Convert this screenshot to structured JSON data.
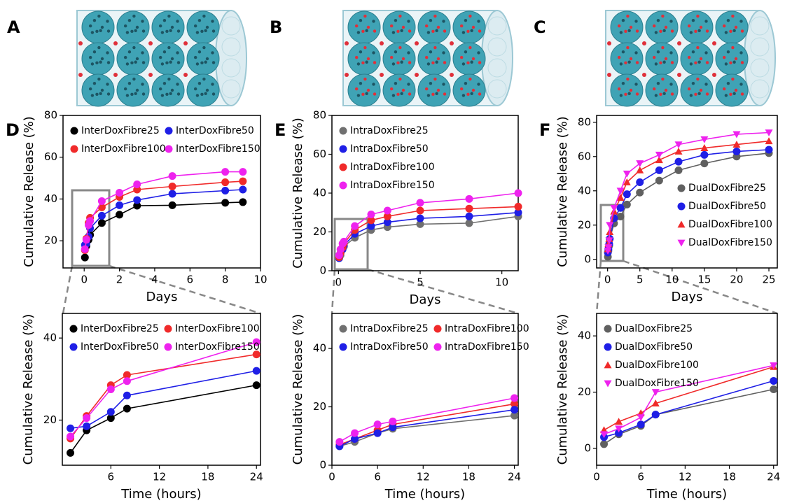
{
  "panel_labels": [
    "A",
    "B",
    "C"
  ],
  "chart_data": [
    {
      "type": "line",
      "panel": "D",
      "xlabel": "Days",
      "ylabel": "Cumulative Release (%)",
      "xlim": [
        -1.2,
        10
      ],
      "xticks": [
        0,
        2,
        4,
        6,
        8,
        10
      ],
      "ylim": [
        7,
        80
      ],
      "yticks": [
        20,
        40,
        60,
        80
      ],
      "legend": "upper left",
      "legend_columns": 2,
      "x": [
        0.042,
        0.125,
        0.25,
        0.333,
        1,
        2,
        3,
        5,
        8,
        9
      ],
      "series": [
        {
          "name": "InterDoxFibre25",
          "color": "#000000",
          "marker": "circle",
          "values": [
            12,
            17.5,
            20.5,
            22.8,
            28.5,
            32.5,
            36.8,
            37,
            38.2,
            38.5
          ]
        },
        {
          "name": "InterDoxFibre50",
          "color": "#1f1fe6",
          "marker": "circle",
          "values": [
            18,
            18.5,
            22,
            26,
            32,
            37,
            39.5,
            42.5,
            44,
            44.5
          ]
        },
        {
          "name": "InterDoxFibre100",
          "color": "#f02a2a",
          "marker": "circle",
          "values": [
            15.5,
            21,
            28.5,
            31,
            36,
            41,
            44.5,
            46,
            48,
            48.5
          ]
        },
        {
          "name": "InterDoxFibre150",
          "color": "#ee22ee",
          "marker": "circle",
          "values": [
            16,
            20.5,
            27.5,
            29.5,
            39,
            43,
            47,
            51,
            53,
            53
          ]
        }
      ]
    },
    {
      "type": "line",
      "xlabel": "Time (hours)",
      "ylabel": "Cumulative Release (%)",
      "xlim": [
        0,
        24.5
      ],
      "xticks": [
        6,
        12,
        18,
        24
      ],
      "ylim": [
        9,
        46
      ],
      "yticks": [
        20,
        40
      ],
      "legend": "upper left",
      "legend_columns": 2,
      "x": [
        1,
        3,
        6,
        8,
        24
      ],
      "series": [
        {
          "name": "InterDoxFibre25",
          "color": "#000000",
          "marker": "circle",
          "values": [
            12,
            17.5,
            20.5,
            22.8,
            28.5
          ]
        },
        {
          "name": "InterDoxFibre100",
          "color": "#f02a2a",
          "marker": "circle",
          "values": [
            15.5,
            21,
            28.5,
            31,
            36
          ]
        },
        {
          "name": "InterDoxFibre50",
          "color": "#1f1fe6",
          "marker": "circle",
          "values": [
            18,
            18.5,
            22,
            26,
            32
          ]
        },
        {
          "name": "InterDoxFibre150",
          "color": "#ee22ee",
          "marker": "circle",
          "values": [
            16,
            20.5,
            27.5,
            29.5,
            39
          ]
        }
      ]
    },
    {
      "type": "line",
      "panel": "E",
      "xlabel": "Days",
      "ylabel": "Cumulative Release (%)",
      "xlim": [
        -0.4,
        11
      ],
      "xticks": [
        0,
        5,
        10
      ],
      "ylim": [
        0,
        80
      ],
      "yticks": [
        0,
        20,
        40,
        60,
        80
      ],
      "legend": "upper left",
      "legend_columns": 1,
      "x": [
        0.042,
        0.125,
        0.25,
        0.333,
        1,
        2,
        3,
        5,
        8,
        11
      ],
      "series": [
        {
          "name": "IntraDoxFibre25",
          "color": "#707070",
          "marker": "circle",
          "values": [
            6.5,
            8,
            11,
            12.5,
            17,
            21,
            22.5,
            24,
            24.5,
            28
          ]
        },
        {
          "name": "IntraDoxFibre50",
          "color": "#1f1fe6",
          "marker": "circle",
          "values": [
            6.5,
            9,
            11,
            13,
            19,
            23,
            25,
            27,
            28,
            30
          ]
        },
        {
          "name": "IntraDoxFibre100",
          "color": "#f02a2a",
          "marker": "circle",
          "values": [
            7,
            9,
            12,
            14,
            21,
            26,
            28,
            31,
            32,
            33
          ]
        },
        {
          "name": "IntraDoxFibre150",
          "color": "#ee22ee",
          "marker": "circle",
          "values": [
            8,
            11,
            14,
            15,
            23,
            29,
            31,
            35,
            37,
            40
          ]
        }
      ]
    },
    {
      "type": "line",
      "xlabel": "Time (hours)",
      "ylabel": "Cumulative Release (%)",
      "xlim": [
        0,
        24.5
      ],
      "xticks": [
        0,
        6,
        12,
        18,
        24
      ],
      "ylim": [
        0,
        52
      ],
      "yticks": [
        0,
        20,
        40
      ],
      "legend": "upper left",
      "legend_columns": 2,
      "x": [
        1,
        3,
        6,
        8,
        24
      ],
      "series": [
        {
          "name": "IntraDoxFibre25",
          "color": "#707070",
          "marker": "circle",
          "values": [
            6.5,
            8,
            11,
            12.5,
            17
          ]
        },
        {
          "name": "IntraDoxFibre100",
          "color": "#f02a2a",
          "marker": "circle",
          "values": [
            7,
            9,
            12,
            14,
            21
          ]
        },
        {
          "name": "IntraDoxFibre50",
          "color": "#1f1fe6",
          "marker": "circle",
          "values": [
            6.5,
            9,
            11,
            13,
            19
          ]
        },
        {
          "name": "IntraDoxFibre150",
          "color": "#ee22ee",
          "marker": "circle",
          "values": [
            8,
            11,
            14,
            15,
            23
          ]
        }
      ]
    },
    {
      "type": "line",
      "panel": "F",
      "xlabel": "Days",
      "ylabel": "Cumulative Release (%)",
      "xlim": [
        -1.7,
        26.3
      ],
      "xticks": [
        0,
        5,
        10,
        15,
        20,
        25
      ],
      "ylim": [
        -5,
        84
      ],
      "yticks": [
        0,
        20,
        40,
        60,
        80
      ],
      "legend": "lower right",
      "legend_columns": 1,
      "x": [
        0.042,
        0.125,
        0.25,
        0.333,
        1,
        2,
        3,
        5,
        8,
        11,
        15,
        20,
        25
      ],
      "series": [
        {
          "name": "DualDoxFibre25",
          "color": "#606060",
          "marker": "circle",
          "values": [
            1.5,
            5,
            8,
            12,
            21,
            25,
            32,
            39,
            46,
            52,
            56,
            60,
            62
          ]
        },
        {
          "name": "DualDoxFibre50",
          "color": "#1f1fe6",
          "marker": "circle",
          "values": [
            4,
            6,
            9,
            12,
            24,
            30,
            38,
            45,
            52,
            57,
            61,
            63,
            64
          ]
        },
        {
          "name": "DualDoxFibre100",
          "color": "#f02a2a",
          "marker": "triangle-up",
          "values": [
            6,
            9,
            12,
            16,
            28,
            36,
            45,
            52,
            58,
            63,
            65,
            67,
            69
          ]
        },
        {
          "name": "DualDoxFibre150",
          "color": "#ee22ee",
          "marker": "triangle-down",
          "values": [
            5,
            7,
            11,
            20,
            30,
            40,
            50,
            56,
            61,
            67,
            70,
            73,
            74
          ]
        }
      ]
    },
    {
      "type": "line",
      "xlabel": "Time (hours)",
      "ylabel": "Cumulative Release (%)",
      "xlim": [
        0,
        24.5
      ],
      "xticks": [
        0,
        6,
        12,
        18,
        24
      ],
      "ylim": [
        -6,
        48
      ],
      "yticks": [
        0,
        20,
        40
      ],
      "legend": "upper left",
      "legend_columns": 1,
      "x": [
        1,
        3,
        6,
        8,
        24
      ],
      "series": [
        {
          "name": "DualDoxFibre25",
          "color": "#606060",
          "marker": "circle",
          "values": [
            1.5,
            5,
            8,
            12,
            21
          ]
        },
        {
          "name": "DualDoxFibre50",
          "color": "#1f1fe6",
          "marker": "circle",
          "values": [
            4,
            5.5,
            8.5,
            12,
            24
          ]
        },
        {
          "name": "DualDoxFibre100",
          "color": "#f02a2a",
          "marker": "triangle-up",
          "values": [
            6.5,
            9.5,
            12.5,
            16,
            29
          ]
        },
        {
          "name": "DualDoxFibre150",
          "color": "#ee22ee",
          "marker": "triangle-down",
          "values": [
            5,
            7,
            11,
            20,
            29.5
          ]
        }
      ]
    }
  ]
}
